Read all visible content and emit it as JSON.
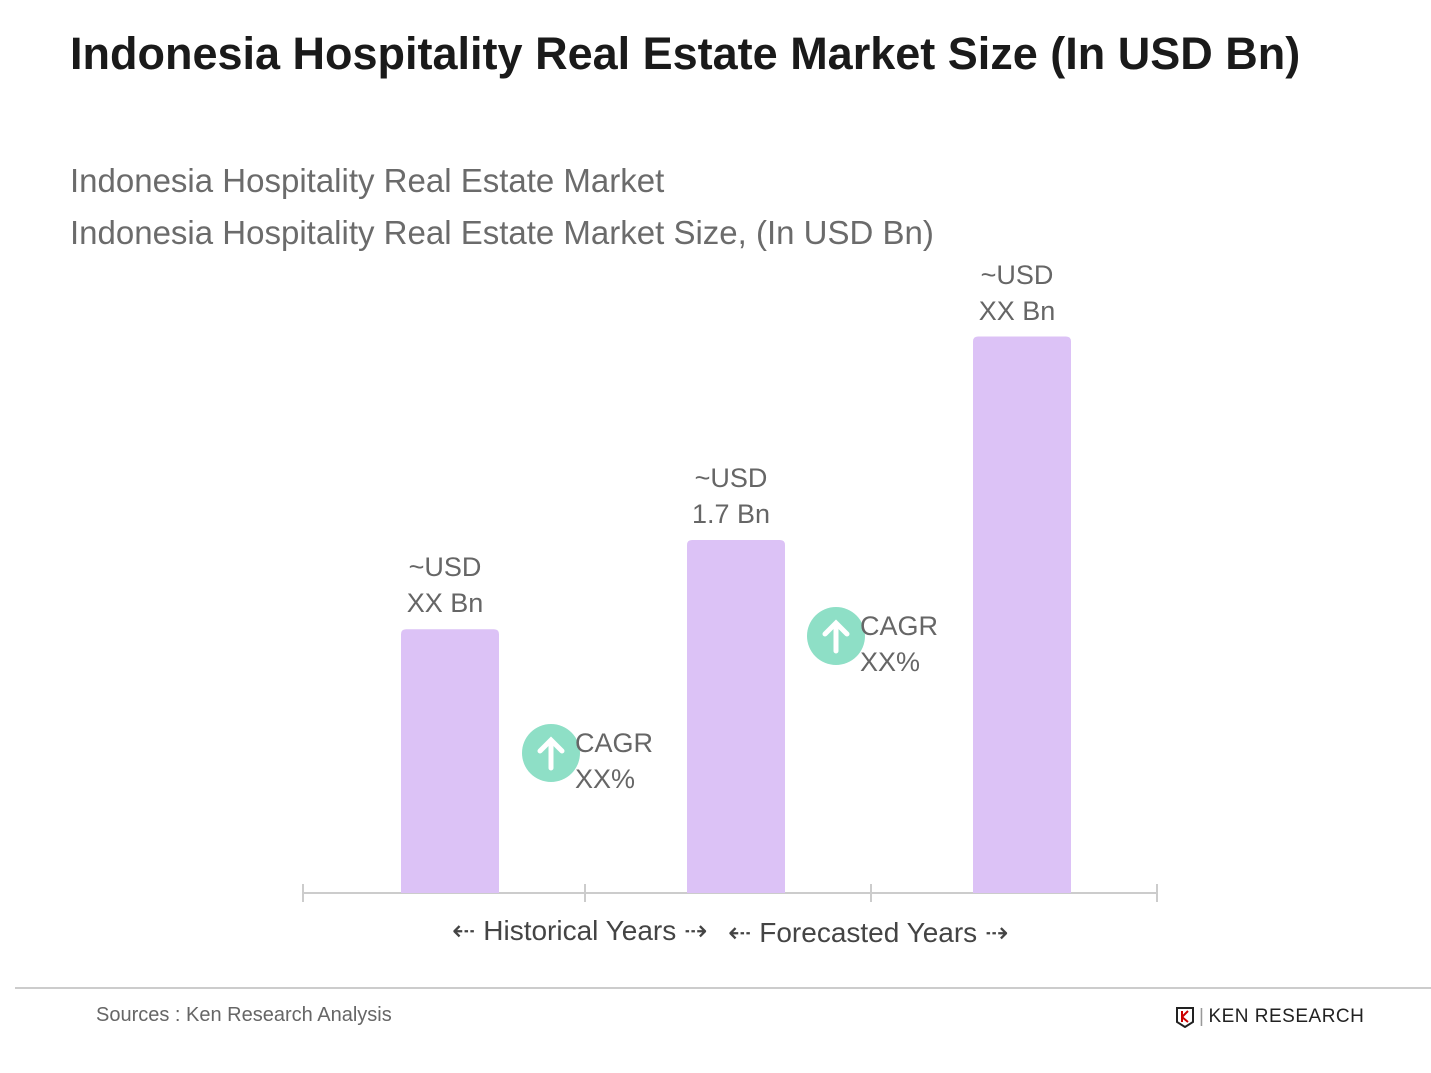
{
  "title": "Indonesia Hospitality Real Estate Market Size (In USD Bn)",
  "subtitle1": "Indonesia Hospitality Real Estate Market",
  "subtitle2": "Indonesia Hospitality Real Estate Market Size, (In USD Bn)",
  "chart_data": {
    "type": "bar",
    "categories": [
      "",
      "",
      ""
    ],
    "values": [
      1.27,
      1.7,
      2.68
    ],
    "data_labels": [
      [
        "~USD",
        "XX Bn"
      ],
      [
        "~USD",
        "1.7 Bn"
      ],
      [
        "~USD",
        "XX Bn"
      ]
    ],
    "bar_color": "#dcc2f6",
    "cagr": [
      {
        "label": "CAGR",
        "value": "XX%",
        "icon": "arrow-up-icon"
      },
      {
        "label": "CAGR",
        "value": "XX%",
        "icon": "arrow-up-icon"
      }
    ],
    "cagr_color": "#8edfc6",
    "x_sections": [
      "Historical Years",
      "Forecasted Years"
    ],
    "grid": false
  },
  "footer": {
    "source": "Sources : Ken Research Analysis",
    "logo": "KEN RESEARCH"
  }
}
